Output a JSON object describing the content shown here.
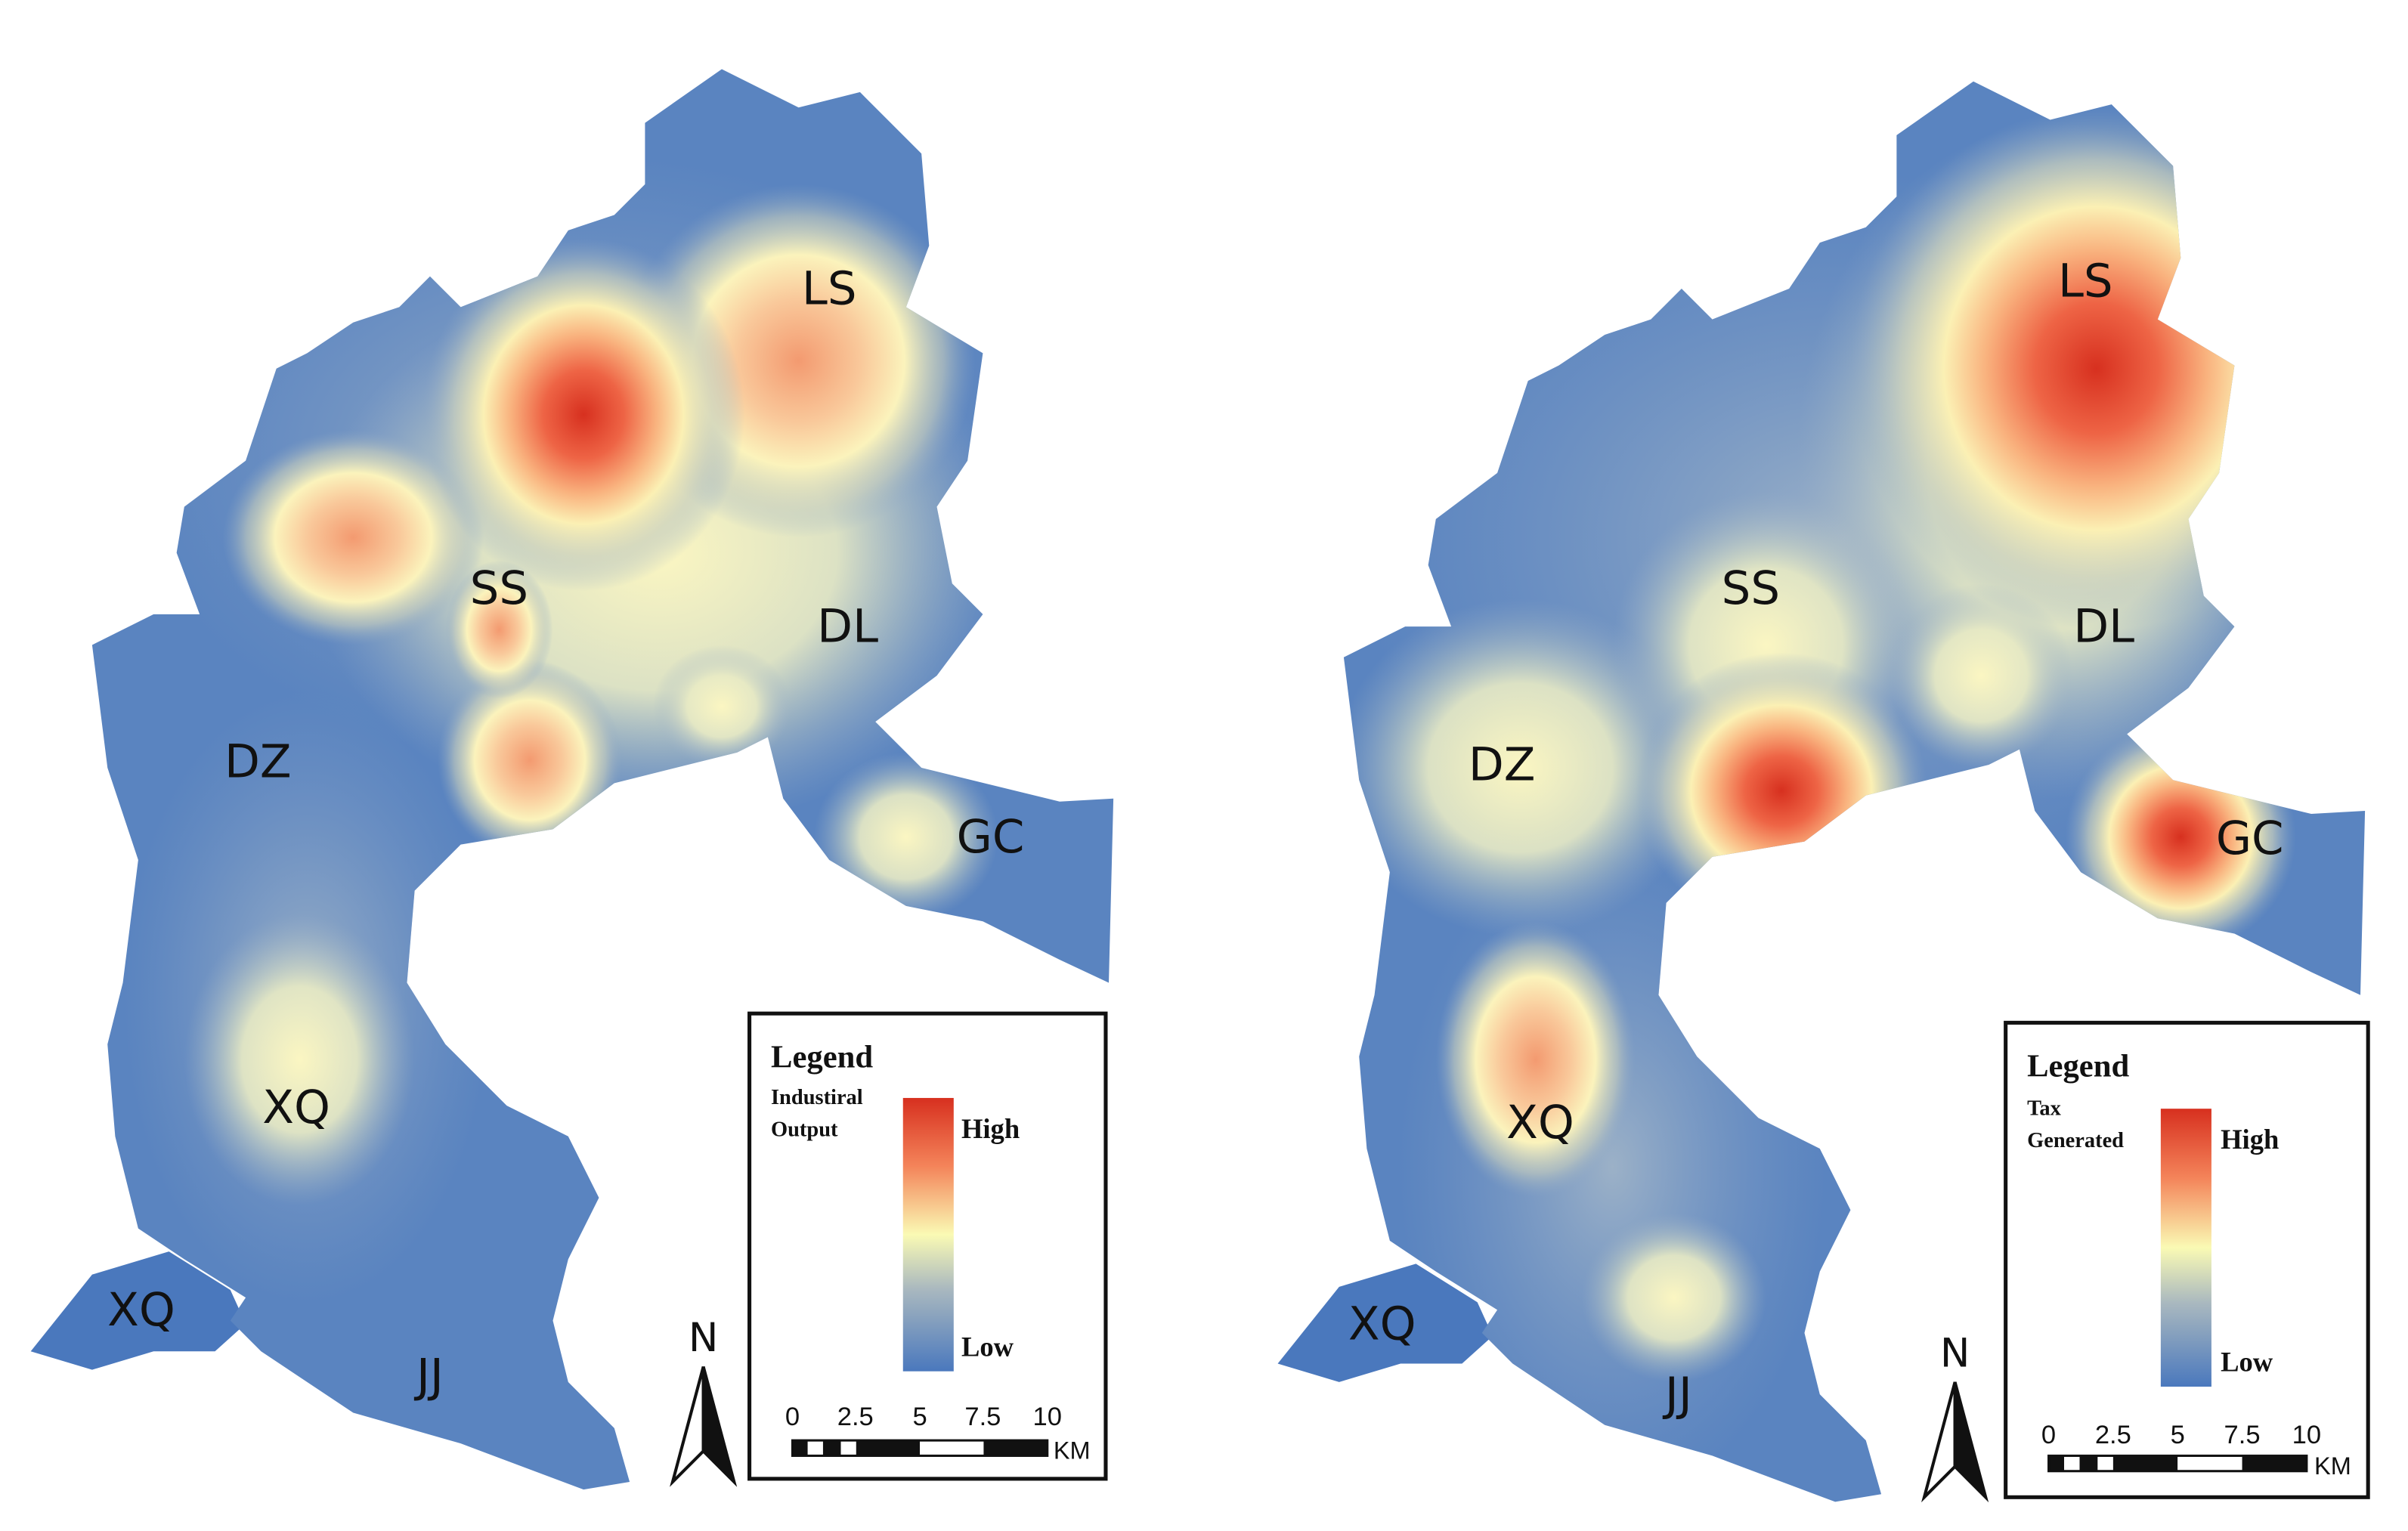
{
  "colors": {
    "low": "#4a78bd",
    "mid": "#fafab4",
    "high": "#d7301f"
  },
  "maps": [
    {
      "legend": {
        "title": "Legend",
        "variable_line1": "Industiral",
        "variable_line2": "Output",
        "high": "High",
        "low": "Low"
      },
      "scale": {
        "ticks": [
          "0",
          "2.5",
          "5",
          "7.5",
          "10"
        ],
        "unit": "KM"
      },
      "north": "N",
      "labels": {
        "LS": "LS",
        "SS": "SS",
        "DL": "DL",
        "DZ": "DZ",
        "GC": "GC",
        "XQ": "XQ",
        "XQ2": "XQ",
        "JJ": "JJ"
      }
    },
    {
      "legend": {
        "title": "Legend",
        "variable_line1": "Tax",
        "variable_line2": "Generated",
        "high": "High",
        "low": "Low"
      },
      "scale": {
        "ticks": [
          "0",
          "2.5",
          "5",
          "7.5",
          "10"
        ],
        "unit": "KM"
      },
      "north": "N",
      "labels": {
        "LS": "LS",
        "SS": "SS",
        "DL": "DL",
        "DZ": "DZ",
        "GC": "GC",
        "XQ": "XQ",
        "XQ2": "XQ",
        "JJ": "JJ"
      }
    }
  ]
}
